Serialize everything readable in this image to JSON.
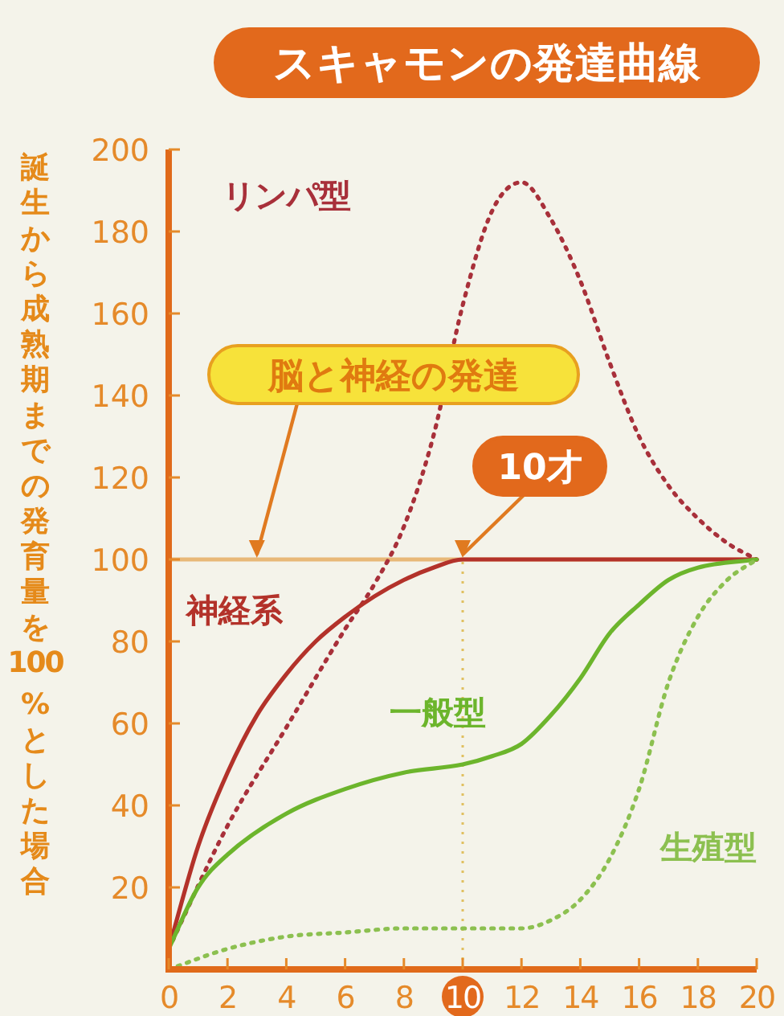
{
  "chart_data": {
    "type": "line",
    "title": "スキャモンの発達曲線",
    "ylabel": "誕生から成熟期までの発育量を100 %とした場合",
    "x": [
      0,
      1,
      2,
      3,
      4,
      5,
      6,
      7,
      8,
      9,
      10,
      11,
      12,
      13,
      14,
      15,
      16,
      17,
      18,
      19,
      20
    ],
    "series": [
      {
        "name": "リンパ型",
        "color": "#a8303a",
        "line_style": "dotted",
        "x": [
          0,
          2,
          4,
          6,
          7,
          8,
          9,
          10,
          11,
          12,
          13,
          14,
          15,
          16,
          17,
          18,
          19,
          20
        ],
        "values": [
          5,
          35,
          59,
          83,
          94,
          108,
          130,
          162,
          185,
          192,
          183,
          168,
          148,
          130,
          118,
          110,
          104,
          100
        ]
      },
      {
        "name": "神経系",
        "color": "#b3322a",
        "line_style": "solid",
        "values": [
          5,
          30,
          48,
          62,
          72,
          80,
          86,
          91,
          95,
          98,
          100,
          100,
          100,
          100,
          100,
          100,
          100,
          100,
          100,
          100,
          100
        ]
      },
      {
        "name": "一般型",
        "color": "#6cb52c",
        "line_style": "solid",
        "x": [
          0,
          1,
          2,
          4,
          6,
          8,
          10,
          11,
          12,
          13,
          14,
          15,
          16,
          17,
          18,
          20
        ],
        "values": [
          5,
          20,
          28,
          38,
          44,
          48,
          50,
          52,
          55,
          62,
          71,
          82,
          89,
          95,
          98,
          100
        ]
      },
      {
        "name": "生殖型",
        "color": "#8cc050",
        "line_style": "dotted",
        "x": [
          0,
          2,
          4,
          6,
          8,
          10,
          12,
          13,
          14,
          15,
          16,
          17,
          18,
          19,
          20
        ],
        "values": [
          0,
          5,
          8,
          9,
          10,
          10,
          10,
          12,
          17,
          27,
          44,
          70,
          86,
          95,
          100
        ]
      }
    ],
    "xlim": [
      0,
      20
    ],
    "xticks": [
      0,
      2,
      4,
      6,
      8,
      10,
      12,
      14,
      16,
      18,
      20
    ],
    "ylim": [
      0,
      200
    ],
    "yticks": [
      20,
      40,
      60,
      80,
      100,
      120,
      140,
      160,
      180,
      200
    ],
    "ref_lines": [
      {
        "axis": "y",
        "value": 100,
        "color": "#e8b878",
        "line_style": "solid"
      },
      {
        "axis": "x",
        "value": 10,
        "color": "#e0c060",
        "line_style": "dotted"
      }
    ],
    "annotations": [
      {
        "text": "脳と神経の発達",
        "x": 3,
        "y": 100
      },
      {
        "text": "10才",
        "x": 10,
        "y": 100
      }
    ],
    "grid": false
  }
}
